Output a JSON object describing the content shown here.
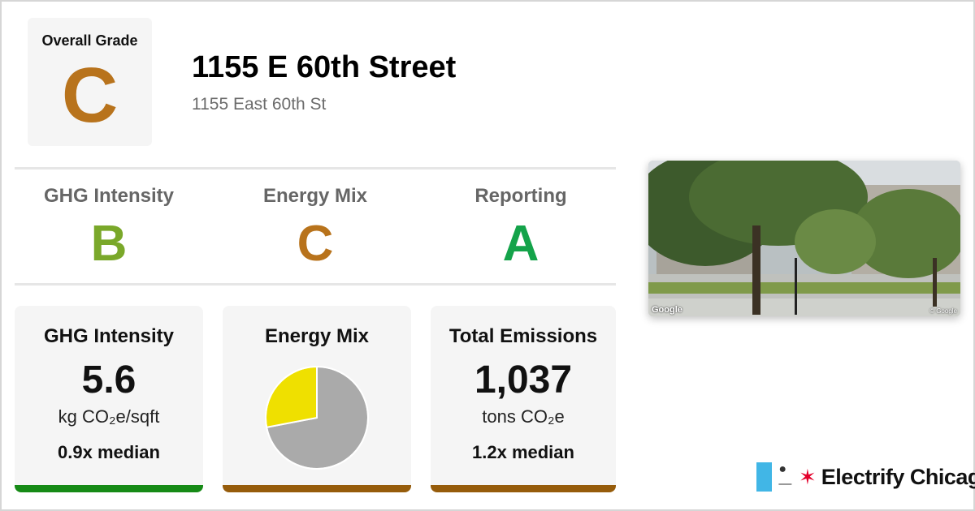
{
  "colors": {
    "grade_a": "#14a34a",
    "grade_b": "#7aa82a",
    "grade_c": "#b8731c",
    "bar_green": "#168a16",
    "bar_brown": "#965c0b",
    "chicago_blue": "#41b6e6",
    "chicago_red": "#e4002b"
  },
  "overall": {
    "label": "Overall Grade",
    "grade": "C"
  },
  "building": {
    "name": "1155 E 60th Street",
    "address": "1155 East 60th St"
  },
  "grades": [
    {
      "label": "GHG Intensity",
      "grade": "B"
    },
    {
      "label": "Energy Mix",
      "grade": "C"
    },
    {
      "label": "Reporting",
      "grade": "A"
    }
  ],
  "cards": {
    "ghg": {
      "title": "GHG Intensity",
      "value": "5.6",
      "unit": "kg CO₂e/sqft",
      "median": "0.9x median"
    },
    "mix": {
      "title": "Energy Mix"
    },
    "emissions": {
      "title": "Total Emissions",
      "value": "1,037",
      "unit": "tons CO₂e",
      "median": "1.2x median"
    }
  },
  "chart_data": {
    "type": "pie",
    "slices": [
      {
        "value": 0.72,
        "color": "#aaaaaa"
      },
      {
        "value": 0.28,
        "color": "#efe000"
      }
    ]
  },
  "photo": {
    "watermark_left": "Google",
    "watermark_right": "© Google"
  },
  "brand": {
    "icon": "plug-icon",
    "name": "Electrify Chicago"
  }
}
